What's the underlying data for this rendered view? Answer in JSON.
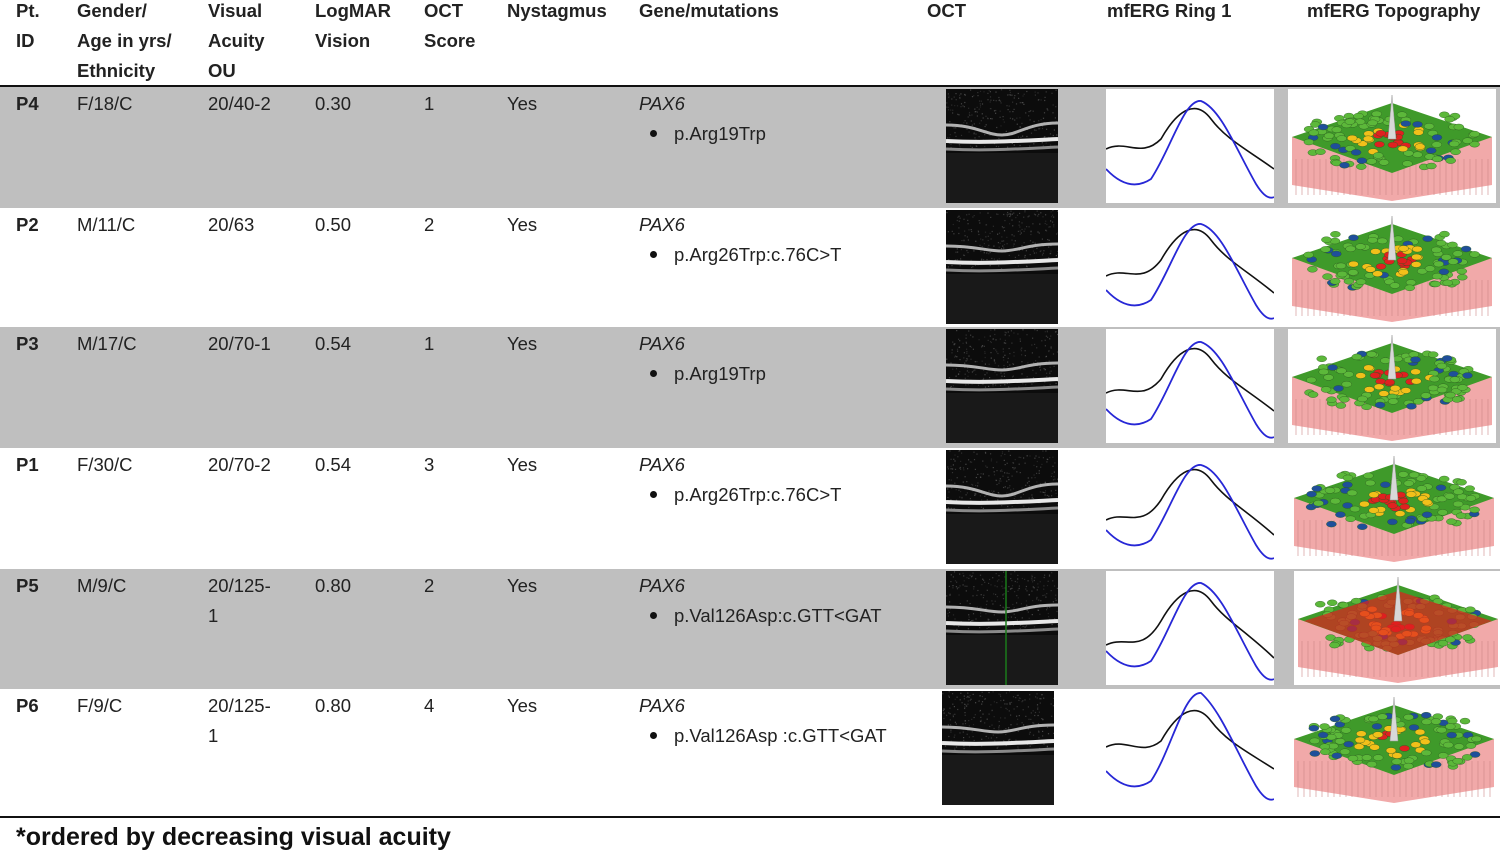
{
  "table": {
    "headers": [
      {
        "key": "id",
        "lines": [
          "Pt.",
          "ID"
        ]
      },
      {
        "key": "gender_age",
        "lines": [
          "Gender/",
          "Age in yrs/",
          "Ethnicity"
        ]
      },
      {
        "key": "acuity",
        "lines": [
          "Visual",
          "Acuity",
          "OU"
        ]
      },
      {
        "key": "logmar",
        "lines": [
          "LogMAR",
          "Vision"
        ]
      },
      {
        "key": "oct_score",
        "lines": [
          "OCT",
          "Score"
        ]
      },
      {
        "key": "nystagmus",
        "lines": [
          "Nystagmus"
        ]
      },
      {
        "key": "gene",
        "lines": [
          "Gene/mutations"
        ]
      },
      {
        "key": "oct",
        "lines": [
          "OCT"
        ]
      },
      {
        "key": "ring1",
        "lines": [
          "mfERG Ring 1"
        ]
      },
      {
        "key": "topo",
        "lines": [
          "mfERG Topography"
        ]
      }
    ],
    "rows": [
      {
        "id": "P4",
        "gender_age": "F/18/C",
        "acuity": [
          "20/40-2"
        ],
        "logmar": "0.30",
        "oct_score": "1",
        "nystagmus": "Yes",
        "gene": "PAX6",
        "mutation": "p.Arg19Trp",
        "shaded": true
      },
      {
        "id": "P2",
        "gender_age": "M/11/C",
        "acuity": [
          "20/63"
        ],
        "logmar": "0.50",
        "oct_score": "2",
        "nystagmus": "Yes",
        "gene": "PAX6",
        "mutation": "p.Arg26Trp:c.76C>T",
        "shaded": false
      },
      {
        "id": "P3",
        "gender_age": "M/17/C",
        "acuity": [
          "20/70-1"
        ],
        "logmar": "0.54",
        "oct_score": "1",
        "nystagmus": "Yes",
        "gene": "PAX6",
        "mutation": "p.Arg19Trp",
        "shaded": true
      },
      {
        "id": "P1",
        "gender_age": "F/30/C",
        "acuity": [
          "20/70-2"
        ],
        "logmar": "0.54",
        "oct_score": "3",
        "nystagmus": "Yes",
        "gene": "PAX6",
        "mutation": "p.Arg26Trp:c.76C>T",
        "shaded": false
      },
      {
        "id": "P5",
        "gender_age": "M/9/C",
        "acuity": [
          "20/125-",
          "1"
        ],
        "logmar": "0.80",
        "oct_score": "2",
        "nystagmus": "Yes",
        "gene": "PAX6",
        "mutation": "p.Val126Asp:c.GTT<GAT",
        "shaded": true
      },
      {
        "id": "P6",
        "gender_age": "F/9/C",
        "acuity": [
          "20/125-",
          "1"
        ],
        "logmar": "0.80",
        "oct_score": "4",
        "nystagmus": "Yes",
        "gene": "PAX6",
        "mutation": "p.Val126Asp :c.GTT<GAT",
        "shaded": false
      }
    ]
  },
  "footnote": "*ordered by decreasing visual acuity",
  "colors": {
    "row_shade": "#bfbfbf",
    "trace_blue": "#2727d6",
    "trace_black": "#111111",
    "topo_green": "#3f9a2a",
    "topo_red": "#e02020",
    "topo_base": "#f1a9a9"
  },
  "icons": [
    "oct-scan-image",
    "mferg-ring1-waveform",
    "mferg-topography-plot"
  ]
}
